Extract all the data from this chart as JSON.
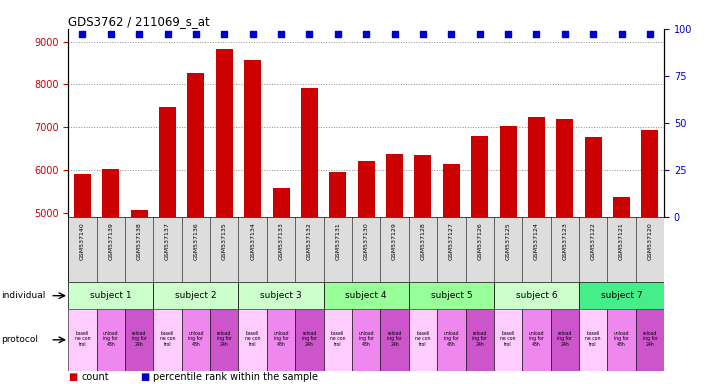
{
  "title": "GDS3762 / 211069_s_at",
  "gsm_labels": [
    "GSM537140",
    "GSM537139",
    "GSM537138",
    "GSM537137",
    "GSM537136",
    "GSM537135",
    "GSM537134",
    "GSM537133",
    "GSM537132",
    "GSM537131",
    "GSM537130",
    "GSM537129",
    "GSM537128",
    "GSM537127",
    "GSM537126",
    "GSM537125",
    "GSM537124",
    "GSM537123",
    "GSM537122",
    "GSM537121",
    "GSM537120"
  ],
  "count_values": [
    5900,
    6020,
    5060,
    7480,
    8270,
    8820,
    8580,
    5580,
    7920,
    5940,
    6220,
    6380,
    6360,
    6140,
    6800,
    7020,
    7230,
    7190,
    6760,
    5370,
    6940
  ],
  "percentile_values": [
    97,
    97,
    97,
    97,
    97,
    97,
    97,
    97,
    97,
    97,
    97,
    97,
    97,
    97,
    97,
    97,
    97,
    97,
    97,
    97,
    97
  ],
  "ylim_left": [
    4900,
    9300
  ],
  "ylim_right": [
    0,
    100
  ],
  "yticks_left": [
    5000,
    6000,
    7000,
    8000,
    9000
  ],
  "yticks_right": [
    0,
    25,
    50,
    75,
    100
  ],
  "bar_color": "#cc0000",
  "dot_color": "#0000cc",
  "subjects": [
    {
      "label": "subject 1",
      "start": 0,
      "end": 3,
      "color": "#ccffcc"
    },
    {
      "label": "subject 2",
      "start": 3,
      "end": 6,
      "color": "#ccffcc"
    },
    {
      "label": "subject 3",
      "start": 6,
      "end": 9,
      "color": "#ccffcc"
    },
    {
      "label": "subject 4",
      "start": 9,
      "end": 12,
      "color": "#99ff99"
    },
    {
      "label": "subject 5",
      "start": 12,
      "end": 15,
      "color": "#99ff99"
    },
    {
      "label": "subject 6",
      "start": 15,
      "end": 18,
      "color": "#ccffcc"
    },
    {
      "label": "subject 7",
      "start": 18,
      "end": 21,
      "color": "#44ee88"
    }
  ],
  "prot_colors": [
    "#ffccff",
    "#ee88ee",
    "#cc55cc"
  ],
  "legend_count_label": "count",
  "legend_percentile_label": "percentile rank within the sample",
  "grid_color": "#888888",
  "tick_label_color_left": "#cc0000",
  "tick_label_color_right": "#0000cc",
  "gsm_bg_color": "#dddddd",
  "prot_labels": [
    "baseli\nne con\ntrol",
    "unload\ning for\n48h",
    "reload\ning for\n24h"
  ]
}
